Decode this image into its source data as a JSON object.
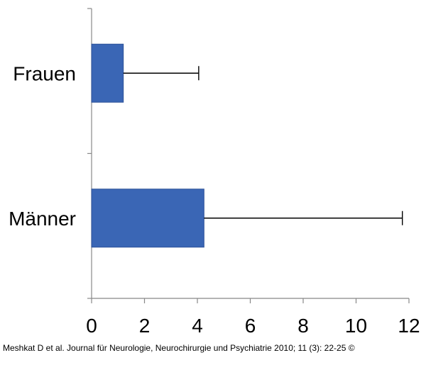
{
  "chart_data": {
    "type": "bar",
    "orientation": "horizontal",
    "categories": [
      "Frauen",
      "Männer"
    ],
    "values": [
      1.2,
      4.25
    ],
    "error_bars_upper": [
      4.05,
      11.75
    ],
    "x_ticks": [
      "0",
      "2",
      "4",
      "6",
      "8",
      "10",
      "12"
    ],
    "xlim": [
      0,
      12
    ],
    "title": "",
    "xlabel": "",
    "ylabel": "",
    "grid": false,
    "legend": "none",
    "bar_color": "#3a66b5",
    "bar_stroke": "#2d5299"
  },
  "citation": "Meshkat D et al. Journal für Neurologie, Neurochirurgie und Psychiatrie 2010; 11 (3): 22-25 ©"
}
